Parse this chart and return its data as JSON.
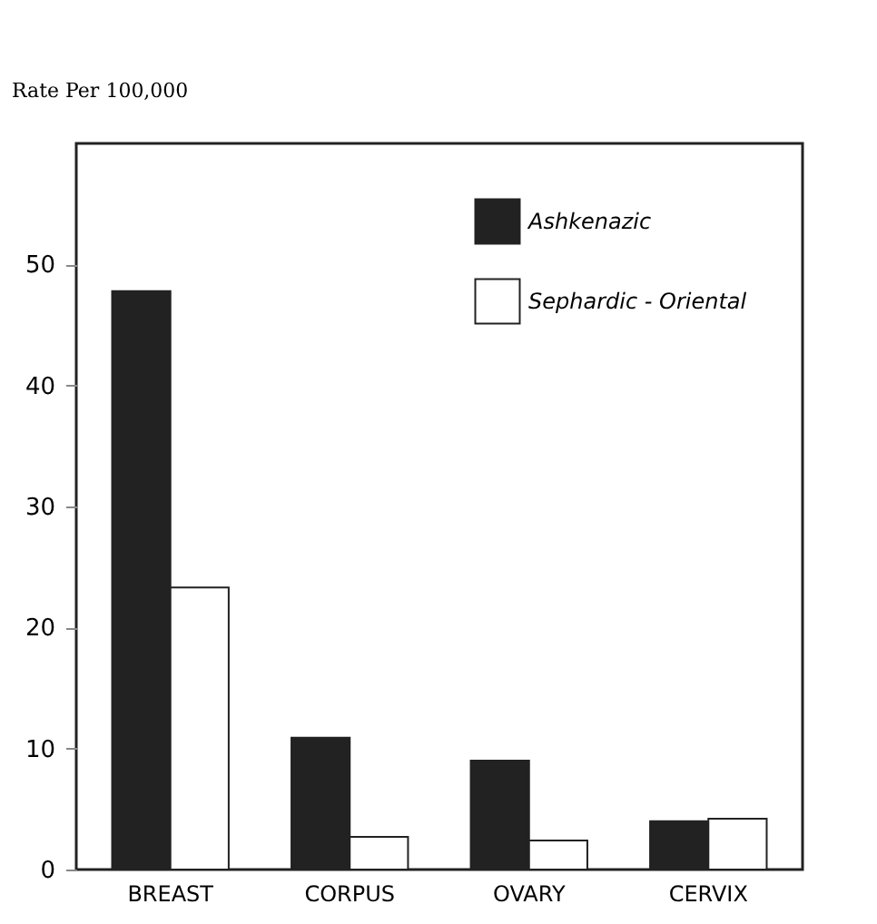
{
  "chart_data": {
    "type": "bar",
    "ylabel": "Rate Per 100,000",
    "categories": [
      "BREAST",
      "CORPUS",
      "OVARY",
      "CERVIX"
    ],
    "series": [
      {
        "name": "Ashkenazic",
        "color": "#222222",
        "values": [
          47.8,
          10.9,
          9,
          4
        ]
      },
      {
        "name": "Sephardic - Oriental",
        "color": "#ffffff",
        "values": [
          23.3,
          2.7,
          2.4,
          4.2
        ]
      }
    ],
    "ylim": [
      0,
      60
    ],
    "yticks": [
      0,
      10,
      20,
      30,
      40,
      50
    ],
    "grid": false,
    "legend": "top right"
  }
}
